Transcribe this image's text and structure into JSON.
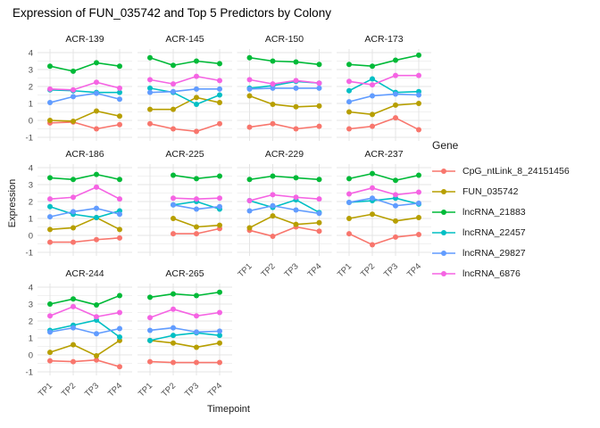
{
  "title": "Expression of FUN_035742 and Top 5 Predictors by Colony",
  "axes": {
    "x_label": "Timepoint",
    "y_label": "Expression",
    "x_ticks": [
      "TP1",
      "TP2",
      "TP3",
      "TP4"
    ],
    "y_ticks": [
      4,
      3,
      2,
      1,
      0,
      -1
    ]
  },
  "legend": {
    "title": "Gene"
  },
  "chart_data": {
    "type": "line",
    "title": "Expression of FUN_035742 and Top 5 Predictors by Colony",
    "xlabel": "Timepoint",
    "ylabel": "Expression",
    "x": [
      "TP1",
      "TP2",
      "TP3",
      "TP4"
    ],
    "ylim": [
      -1,
      4
    ],
    "grid": true,
    "legend_position": "right",
    "genes": [
      {
        "name": "CpG_ntLink_8_24151456",
        "color": "#F8766D"
      },
      {
        "name": "FUN_035742",
        "color": "#B79F00"
      },
      {
        "name": "lncRNA_21883",
        "color": "#00BA38"
      },
      {
        "name": "lncRNA_22457",
        "color": "#00BFC4"
      },
      {
        "name": "lncRNA_29827",
        "color": "#619CFF"
      },
      {
        "name": "lncRNA_6876",
        "color": "#F564E3"
      }
    ],
    "facets": [
      {
        "colony": "ACR-139",
        "series": [
          [
            -0.15,
            -0.1,
            -0.5,
            -0.25
          ],
          [
            0.0,
            -0.05,
            0.55,
            0.25
          ],
          [
            3.2,
            2.9,
            3.4,
            3.2
          ],
          [
            1.8,
            1.75,
            1.65,
            1.65
          ],
          [
            1.05,
            1.4,
            1.6,
            1.25
          ],
          [
            1.85,
            1.8,
            2.25,
            1.9
          ]
        ]
      },
      {
        "colony": "ACR-145",
        "series": [
          [
            -0.2,
            -0.5,
            -0.65,
            -0.2
          ],
          [
            0.65,
            0.65,
            1.35,
            1.05
          ],
          [
            3.7,
            3.25,
            3.5,
            3.35
          ],
          [
            1.9,
            1.65,
            0.95,
            1.5
          ],
          [
            1.65,
            1.7,
            1.85,
            1.85
          ],
          [
            2.4,
            2.15,
            2.6,
            2.35
          ]
        ]
      },
      {
        "colony": "ACR-150",
        "series": [
          [
            -0.4,
            -0.2,
            -0.5,
            -0.35
          ],
          [
            1.45,
            0.95,
            0.8,
            0.85
          ],
          [
            3.7,
            3.5,
            3.45,
            3.3
          ],
          [
            1.9,
            2.05,
            2.3,
            2.2
          ],
          [
            1.85,
            1.9,
            1.9,
            1.9
          ],
          [
            2.4,
            2.15,
            2.35,
            2.2
          ]
        ]
      },
      {
        "colony": "ACR-173",
        "series": [
          [
            -0.5,
            -0.35,
            0.15,
            -0.55
          ],
          [
            0.5,
            0.35,
            0.9,
            1.0
          ],
          [
            3.3,
            3.2,
            3.55,
            3.85
          ],
          [
            1.75,
            2.45,
            1.65,
            1.7
          ],
          [
            1.1,
            1.45,
            1.55,
            1.5
          ],
          [
            2.3,
            2.1,
            2.65,
            2.65
          ]
        ]
      },
      {
        "colony": "ACR-186",
        "series": [
          [
            -0.4,
            -0.4,
            -0.25,
            -0.15
          ],
          [
            0.35,
            0.45,
            1.05,
            0.35
          ],
          [
            3.4,
            3.3,
            3.6,
            3.3
          ],
          [
            1.7,
            1.25,
            1.05,
            1.45
          ],
          [
            1.1,
            1.4,
            1.6,
            1.25
          ],
          [
            2.15,
            2.25,
            2.85,
            2.15
          ]
        ]
      },
      {
        "colony": "ACR-225",
        "series": [
          [
            null,
            0.1,
            0.1,
            0.4
          ],
          [
            null,
            1.0,
            0.5,
            0.6
          ],
          [
            null,
            3.55,
            3.35,
            3.5
          ],
          [
            null,
            1.8,
            2.0,
            1.55
          ],
          [
            null,
            1.8,
            1.55,
            1.7
          ],
          [
            null,
            2.2,
            2.15,
            2.2
          ]
        ]
      },
      {
        "colony": "ACR-229",
        "series": [
          [
            0.3,
            -0.05,
            0.5,
            0.25
          ],
          [
            0.45,
            1.15,
            0.65,
            0.75
          ],
          [
            3.3,
            3.5,
            3.4,
            3.3
          ],
          [
            2.05,
            1.65,
            2.1,
            1.35
          ],
          [
            1.45,
            1.75,
            1.5,
            1.3
          ],
          [
            2.05,
            2.4,
            2.25,
            2.15
          ]
        ]
      },
      {
        "colony": "ACR-237",
        "series": [
          [
            0.1,
            -0.55,
            -0.1,
            0.05
          ],
          [
            1.0,
            1.25,
            0.85,
            1.05
          ],
          [
            3.35,
            3.65,
            3.25,
            3.55
          ],
          [
            1.95,
            2.05,
            2.2,
            1.85
          ],
          [
            1.95,
            2.2,
            1.75,
            1.9
          ],
          [
            2.45,
            2.8,
            2.4,
            2.55
          ]
        ]
      },
      {
        "colony": "ACR-244",
        "series": [
          [
            -0.35,
            -0.4,
            -0.3,
            -0.7
          ],
          [
            0.15,
            0.6,
            -0.05,
            0.85
          ],
          [
            3.0,
            3.3,
            2.95,
            3.5
          ],
          [
            1.45,
            1.75,
            2.05,
            1.05
          ],
          [
            1.35,
            1.6,
            1.25,
            1.55
          ],
          [
            2.3,
            2.85,
            2.25,
            2.5
          ]
        ]
      },
      {
        "colony": "ACR-265",
        "series": [
          [
            -0.4,
            -0.45,
            -0.45,
            -0.45
          ],
          [
            0.85,
            0.7,
            0.45,
            0.7
          ],
          [
            3.4,
            3.6,
            3.5,
            3.7
          ],
          [
            0.85,
            1.15,
            1.3,
            1.15
          ],
          [
            1.45,
            1.6,
            1.35,
            1.4
          ],
          [
            2.2,
            2.7,
            2.3,
            2.5
          ]
        ]
      }
    ]
  },
  "style": {
    "grid_major_color": "#E4E4E4",
    "grid_minor_color": "#F1F1F1",
    "axis_text_color": "#4D4D4D",
    "strip_text_color": "#1A1A1A"
  }
}
